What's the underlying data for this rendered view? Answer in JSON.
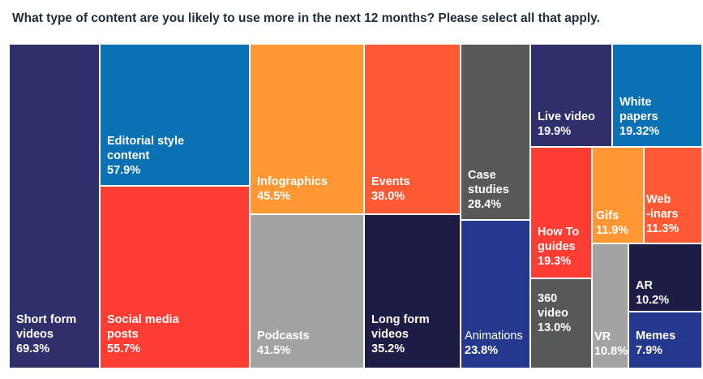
{
  "title": "What type of content are you likely to use more in the next 12 months? Please select all that apply.",
  "chart_data": {
    "type": "treemap",
    "unit": "%",
    "items": [
      {
        "name": "Short form\nvideos",
        "value": 69.3,
        "value_label": "69.3%",
        "color": "#2e2f6b"
      },
      {
        "name": "Editorial style\ncontent",
        "value": 57.9,
        "value_label": "57.9%",
        "color": "#0a71b4"
      },
      {
        "name": "Social media\nposts",
        "value": 55.7,
        "value_label": "55.7%",
        "color": "#ff3d33"
      },
      {
        "name": "Infographics",
        "value": 45.5,
        "value_label": "45.5%",
        "color": "#ff9833"
      },
      {
        "name": "Podcasts",
        "value": 41.5,
        "value_label": "41.5%",
        "color": "#a3a3a3"
      },
      {
        "name": "Events",
        "value": 38.0,
        "value_label": "38.0%",
        "color": "#ff5a33"
      },
      {
        "name": "Long form\nvideos",
        "value": 35.2,
        "value_label": "35.2%",
        "color": "#1d1c44"
      },
      {
        "name": "Case\nstudies",
        "value": 28.4,
        "value_label": "28.4%",
        "color": "#575858"
      },
      {
        "name": "Animations",
        "value": 23.8,
        "value_label": "23.8%",
        "color": "#24388e"
      },
      {
        "name": "Live video",
        "value": 19.9,
        "value_label": "19.9%",
        "color": "#2e2f6b"
      },
      {
        "name": "White\npapers",
        "value": 19.32,
        "value_label": "19.32%",
        "color": "#0a71b4"
      },
      {
        "name": "How To\nguides",
        "value": 19.3,
        "value_label": "19.3%",
        "color": "#ff3d33"
      },
      {
        "name": "360\nvideo",
        "value": 13.0,
        "value_label": "13.0%",
        "color": "#575858"
      },
      {
        "name": "Gifs",
        "value": 11.9,
        "value_label": "11.9%",
        "color": "#ff9833"
      },
      {
        "name": "Web\n-inars",
        "value": 11.3,
        "value_label": "11.3%",
        "color": "#ff5a33"
      },
      {
        "name": "VR",
        "value": 10.8,
        "value_label": "10.8%",
        "color": "#a3a3a3"
      },
      {
        "name": "AR",
        "value": 10.2,
        "value_label": "10.2%",
        "color": "#1d1c44"
      },
      {
        "name": "Memes",
        "value": 7.9,
        "value_label": "7.9%",
        "color": "#24388e"
      }
    ]
  }
}
